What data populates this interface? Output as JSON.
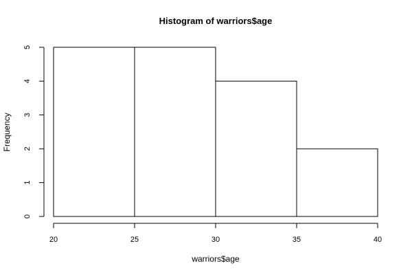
{
  "chart_data": {
    "type": "bar",
    "title": "Histogram of warriors$age",
    "xlabel": "warriors$age",
    "ylabel": "Frequency",
    "bins": [
      {
        "from": 20,
        "to": 25,
        "count": 5
      },
      {
        "from": 25,
        "to": 30,
        "count": 5
      },
      {
        "from": 30,
        "to": 35,
        "count": 4
      },
      {
        "from": 35,
        "to": 40,
        "count": 2
      }
    ],
    "xlim": [
      20,
      40
    ],
    "ylim": [
      0,
      5
    ],
    "x_ticks": [
      "20",
      "25",
      "30",
      "35",
      "40"
    ],
    "y_ticks": [
      "0",
      "1",
      "2",
      "3",
      "4",
      "5"
    ],
    "grid": false,
    "bar_fill": "#ffffff",
    "bar_stroke": "#000000"
  }
}
